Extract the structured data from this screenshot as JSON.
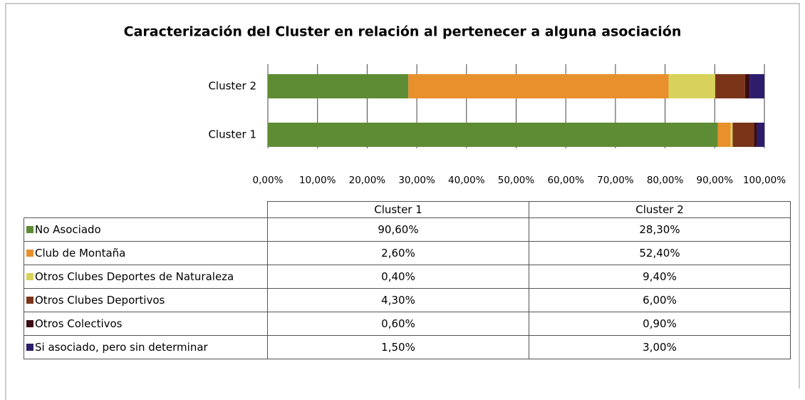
{
  "chart_data": {
    "type": "bar",
    "orientation": "horizontal",
    "stacked": true,
    "title": "Caracterización del Cluster en relación al pertenecer a alguna asociación",
    "categories": [
      "Cluster 1",
      "Cluster 2"
    ],
    "series": [
      {
        "name": "No Asociado",
        "color": "#5e8c35",
        "values": [
          90.6,
          28.3
        ],
        "value_labels": [
          "90,60%",
          "28,30%"
        ]
      },
      {
        "name": "Club de Montaña",
        "color": "#e8902c",
        "values": [
          2.6,
          52.4
        ],
        "value_labels": [
          "2,60%",
          "52,40%"
        ]
      },
      {
        "name": "Otros Clubes Deportes de Naturaleza",
        "color": "#d8d25c",
        "values": [
          0.4,
          9.4
        ],
        "value_labels": [
          "0,40%",
          "9,40%"
        ]
      },
      {
        "name": "Otros Clubes Deportivos",
        "color": "#7a3418",
        "values": [
          4.3,
          6.0
        ],
        "value_labels": [
          "4,30%",
          "6,00%"
        ]
      },
      {
        "name": "Otros Colectivos",
        "color": "#3c0c12",
        "values": [
          0.6,
          0.9
        ],
        "value_labels": [
          "0,60%",
          "0,90%"
        ]
      },
      {
        "name": "Si asociado, pero sin determinar",
        "color": "#2e1d6c",
        "values": [
          1.5,
          3.0
        ],
        "value_labels": [
          "1,50%",
          "3,00%"
        ]
      }
    ],
    "xlim": [
      0,
      100
    ],
    "xticks": [
      {
        "value": 0,
        "label": "0,00%"
      },
      {
        "value": 10,
        "label": "10,00%"
      },
      {
        "value": 20,
        "label": "20,00%"
      },
      {
        "value": 30,
        "label": "30,00%"
      },
      {
        "value": 40,
        "label": "40,00%"
      },
      {
        "value": 50,
        "label": "50,00%"
      },
      {
        "value": 60,
        "label": "60,00%"
      },
      {
        "value": 70,
        "label": "70,00%"
      },
      {
        "value": 80,
        "label": "80,00%"
      },
      {
        "value": 90,
        "label": "90,00%"
      },
      {
        "value": 100,
        "label": "100,00%"
      }
    ],
    "grid": true
  }
}
